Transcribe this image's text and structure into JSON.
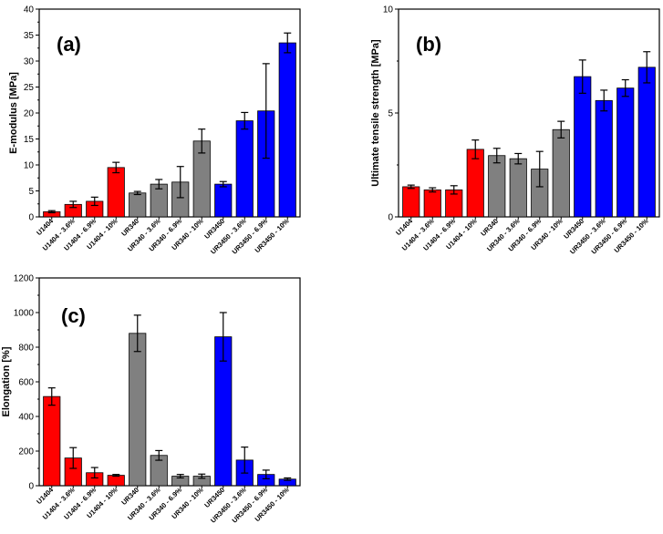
{
  "categories": [
    "U1404",
    "U1404 - 3.6%",
    "U1404 - 6.9%",
    "U1404 - 10%",
    "UR340",
    "UR340 - 3.6%",
    "UR340 - 6.9%",
    "UR340 - 10%",
    "UR3450",
    "UR3450 - 3.6%",
    "UR3450 - 6.9%",
    "UR3450 - 10%"
  ],
  "colors": {
    "U1404": "#ff0000",
    "UR340": "#808080",
    "UR3450": "#0000ff"
  },
  "chart_data": [
    {
      "type": "bar",
      "panel_label": "(a)",
      "title": "",
      "xlabel": "",
      "ylabel": "E-modulus [MPa]",
      "ylim": [
        0,
        40
      ],
      "yticks": [
        0,
        5,
        10,
        15,
        20,
        25,
        30,
        35,
        40
      ],
      "categories": [
        "U1404",
        "U1404 - 3.6%",
        "U1404 - 6.9%",
        "U1404 - 10%",
        "UR340",
        "UR340 - 3.6%",
        "UR340 - 6.9%",
        "UR340 - 10%",
        "UR3450",
        "UR3450 - 3.6%",
        "UR3450 - 6.9%",
        "UR3450 - 10%"
      ],
      "values": [
        1.0,
        2.4,
        3.0,
        9.5,
        4.6,
        6.3,
        6.7,
        14.6,
        6.3,
        18.5,
        20.4,
        33.5
      ],
      "errors": [
        0.2,
        0.6,
        0.8,
        1.0,
        0.3,
        0.9,
        3.0,
        2.3,
        0.5,
        1.6,
        9.1,
        1.9
      ]
    },
    {
      "type": "bar",
      "panel_label": "(b)",
      "title": "",
      "xlabel": "",
      "ylabel": "Ultimate tensile strength [MPa]",
      "ylim": [
        0,
        10
      ],
      "yticks": [
        0,
        5,
        10
      ],
      "categories": [
        "U1404",
        "U1404 - 3.6%",
        "U1404 - 6.9%",
        "U1404 - 10%",
        "UR340",
        "UR340 - 3.6%",
        "UR340 - 6.9%",
        "UR340 - 10%",
        "UR3450",
        "UR3450 - 3.6%",
        "UR3450 - 6.9%",
        "UR3450 - 10%"
      ],
      "values": [
        1.45,
        1.3,
        1.3,
        3.25,
        2.95,
        2.8,
        2.3,
        4.2,
        6.75,
        5.6,
        6.2,
        7.2
      ],
      "errors": [
        0.08,
        0.1,
        0.2,
        0.45,
        0.35,
        0.25,
        0.85,
        0.4,
        0.8,
        0.5,
        0.4,
        0.75
      ]
    },
    {
      "type": "bar",
      "panel_label": "(c)",
      "title": "",
      "xlabel": "",
      "ylabel": "Elongation [%]",
      "ylim": [
        0,
        1200
      ],
      "yticks": [
        0,
        200,
        400,
        600,
        800,
        1000,
        1200
      ],
      "categories": [
        "U1404",
        "U1404 - 3.6%",
        "U1404 - 6.9%",
        "U1404 - 10%",
        "UR340",
        "UR340 - 3.6%",
        "UR340 - 6.9%",
        "UR340 - 10%",
        "UR3450",
        "UR3450 - 3.6%",
        "UR3450 - 6.9%",
        "UR3450 - 10%"
      ],
      "values": [
        515,
        160,
        75,
        60,
        880,
        175,
        55,
        55,
        860,
        148,
        65,
        38
      ],
      "errors": [
        50,
        60,
        30,
        5,
        105,
        28,
        10,
        12,
        140,
        75,
        25,
        7
      ]
    }
  ]
}
